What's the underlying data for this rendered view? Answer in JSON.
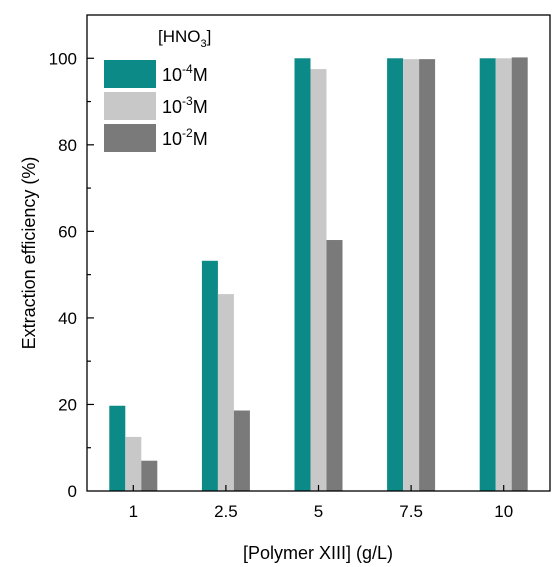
{
  "chart_data": {
    "type": "bar",
    "title": "",
    "xlabel": "[Polymer XIII] (g/L)",
    "ylabel": "Extraction efficiency (%)",
    "categories": [
      "1",
      "2.5",
      "5",
      "7.5",
      "10"
    ],
    "ylim": [
      0,
      110
    ],
    "yticks": [
      "0",
      "20",
      "40",
      "60",
      "80",
      "100"
    ],
    "legend": {
      "title_main": "[HNO",
      "title_sub": "3",
      "title_end": "]",
      "placement": "top-left"
    },
    "series": [
      {
        "label_base": "10",
        "label_exp": "-4",
        "label_unit": "M",
        "color": "#0b8a88",
        "values": [
          19.7,
          53.2,
          100,
          100,
          100
        ]
      },
      {
        "label_base": "10",
        "label_exp": "-3",
        "label_unit": "M",
        "color": "#c8c8c8",
        "values": [
          12.5,
          45.5,
          97.5,
          99.8,
          100
        ]
      },
      {
        "label_base": "10",
        "label_exp": "-2",
        "label_unit": "M",
        "color": "#7a7a7a",
        "values": [
          7.0,
          18.6,
          58.0,
          99.8,
          100.2
        ]
      }
    ]
  }
}
